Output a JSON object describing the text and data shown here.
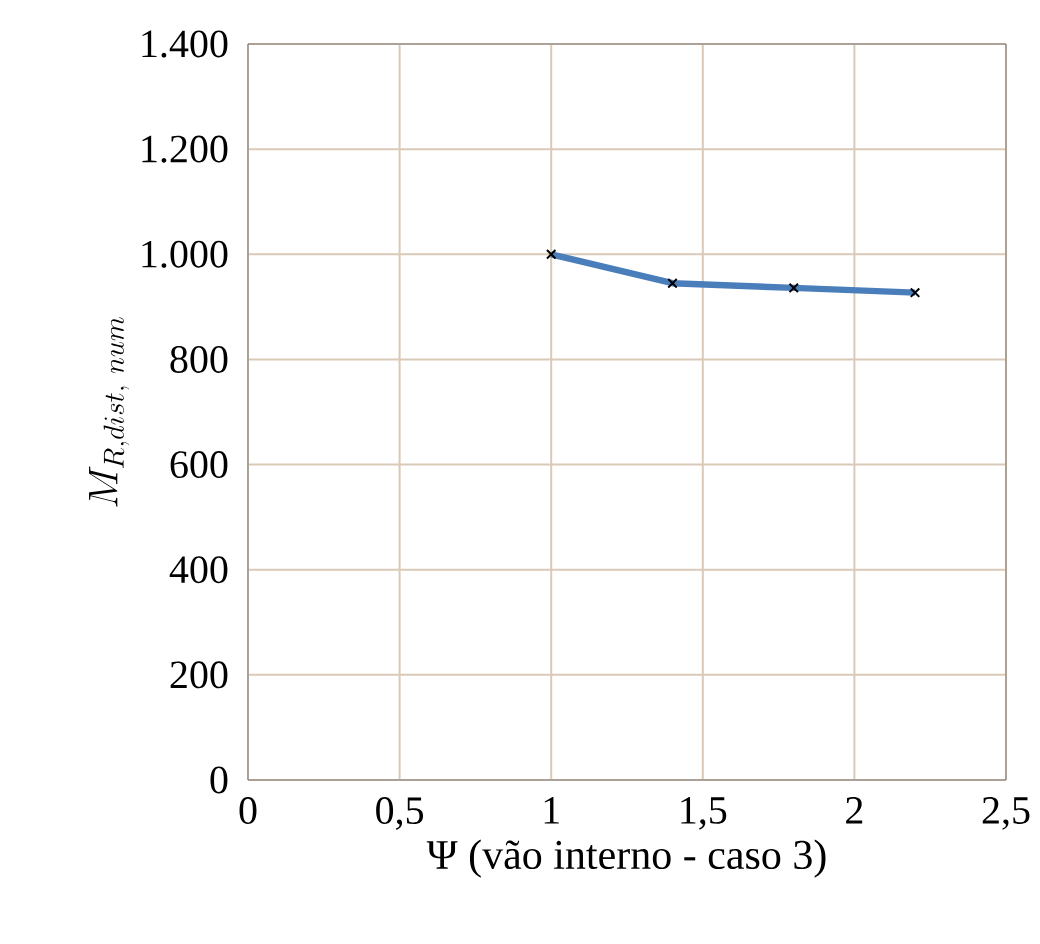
{
  "chart_data": {
    "type": "line",
    "xlabel": "Ψ (vão interno - caso 3)",
    "ylabel": "M_{R,dist,\\ num}",
    "x": [
      1,
      1.4,
      1.8,
      2.2
    ],
    "series": [
      {
        "color": "#4a7ebb",
        "values": [
          1000,
          945,
          936,
          927
        ]
      }
    ],
    "xlim": [
      0,
      2.5
    ],
    "ylim": [
      0,
      1400
    ],
    "xticks": [
      0,
      {
        "value": 0.5,
        "label": "0,5"
      },
      1,
      {
        "value": 1.5,
        "label": "1,5"
      },
      2,
      {
        "value": 2.5,
        "label": "2,5"
      }
    ],
    "yticks": [
      0,
      200,
      400,
      600,
      800,
      {
        "value": 1000,
        "label": "1.000"
      },
      {
        "value": 1200,
        "label": "1.200"
      },
      {
        "value": 1400,
        "label": "1.400"
      }
    ],
    "grid": true,
    "marker": "cross",
    "line_style": "solid"
  }
}
